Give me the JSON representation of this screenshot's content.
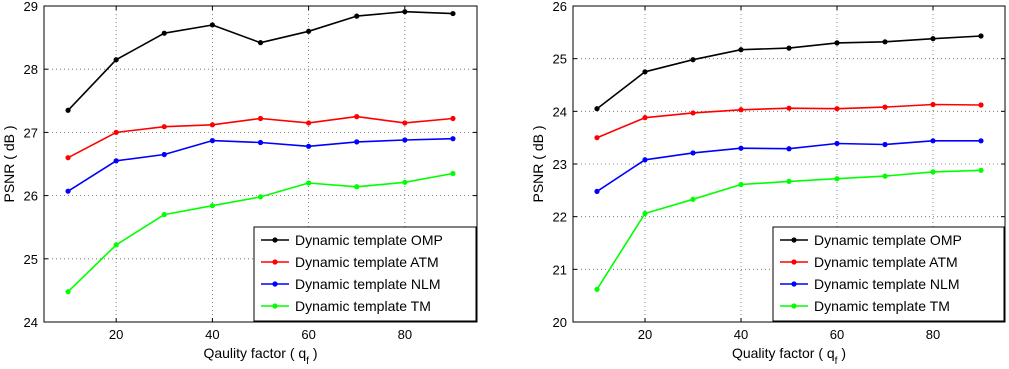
{
  "chart_data": [
    {
      "type": "line",
      "title": "",
      "xlabel": "Qaulity factor ( q",
      "xlabel_sub": "f",
      "xlabel_end": " )",
      "ylabel": "PSNR ( dB )",
      "xlim": [
        5,
        95
      ],
      "ylim": [
        24,
        29
      ],
      "xticks": [
        20,
        40,
        60,
        80
      ],
      "yticks": [
        24,
        25,
        26,
        27,
        28,
        29
      ],
      "grid": true,
      "legend_position": "bottom-right",
      "x": [
        10,
        20,
        30,
        40,
        50,
        60,
        70,
        80,
        90
      ],
      "series": [
        {
          "name": "Dynamic template OMP",
          "color": "#000000",
          "values": [
            27.35,
            28.15,
            28.57,
            28.7,
            28.42,
            28.6,
            28.84,
            28.91,
            28.88
          ]
        },
        {
          "name": "Dynamic template ATM",
          "color": "#ff0000",
          "values": [
            26.6,
            27.0,
            27.09,
            27.12,
            27.22,
            27.15,
            27.25,
            27.15,
            27.22
          ]
        },
        {
          "name": "Dynamic template NLM",
          "color": "#0000ff",
          "values": [
            26.07,
            26.55,
            26.65,
            26.87,
            26.84,
            26.78,
            26.85,
            26.88,
            26.9
          ]
        },
        {
          "name": "Dynamic template TM",
          "color": "#00ff00",
          "values": [
            24.48,
            25.22,
            25.7,
            25.84,
            25.98,
            26.2,
            26.14,
            26.21,
            26.35
          ]
        }
      ]
    },
    {
      "type": "line",
      "title": "",
      "xlabel": "Quality factor ( q",
      "xlabel_sub": "f",
      "xlabel_end": " )",
      "ylabel": "PSNR ( dB )",
      "xlim": [
        5,
        95
      ],
      "ylim": [
        20,
        26
      ],
      "xticks": [
        20,
        40,
        60,
        80
      ],
      "yticks": [
        20,
        21,
        22,
        23,
        24,
        25,
        26
      ],
      "grid": true,
      "legend_position": "bottom-right",
      "x": [
        10,
        20,
        30,
        40,
        50,
        60,
        70,
        80,
        90
      ],
      "series": [
        {
          "name": "Dynamic template OMP",
          "color": "#000000",
          "values": [
            24.05,
            24.75,
            24.98,
            25.17,
            25.2,
            25.3,
            25.32,
            25.38,
            25.43
          ]
        },
        {
          "name": "Dynamic template ATM",
          "color": "#ff0000",
          "values": [
            23.5,
            23.88,
            23.97,
            24.03,
            24.06,
            24.05,
            24.08,
            24.13,
            24.12
          ]
        },
        {
          "name": "Dynamic template NLM",
          "color": "#0000ff",
          "values": [
            22.48,
            23.08,
            23.21,
            23.3,
            23.29,
            23.39,
            23.37,
            23.44,
            23.44
          ]
        },
        {
          "name": "Dynamic template TM",
          "color": "#00ff00",
          "values": [
            20.62,
            22.06,
            22.33,
            22.61,
            22.67,
            22.72,
            22.77,
            22.85,
            22.88
          ]
        }
      ]
    }
  ]
}
